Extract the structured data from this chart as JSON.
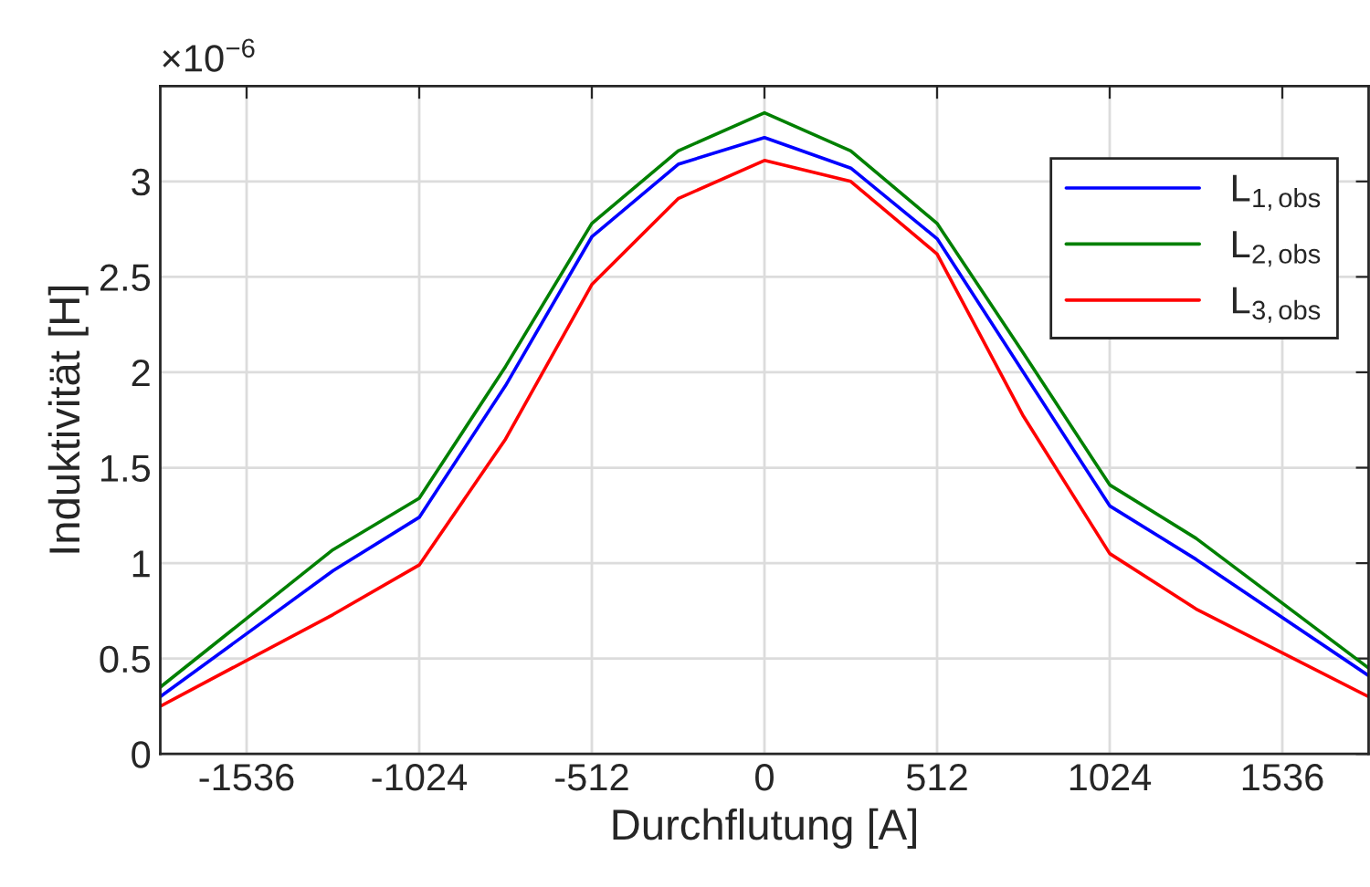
{
  "chart_data": {
    "type": "line",
    "xlabel": "Durchflutung [A]",
    "ylabel": "Induktivität [H]",
    "x": [
      -1792,
      -1280,
      -1024,
      -768,
      -512,
      -256,
      0,
      256,
      512,
      768,
      1024,
      1280,
      1792
    ],
    "series": [
      {
        "name": "L$_{1,obs}$",
        "color": "#0000ff",
        "values": [
          0.3,
          0.96,
          1.24,
          1.93,
          2.71,
          3.09,
          3.23,
          3.07,
          2.7,
          2.0,
          1.3,
          1.02,
          0.41
        ]
      },
      {
        "name": "L$_{2,obs}$",
        "color": "#008000",
        "values": [
          0.35,
          1.07,
          1.34,
          2.03,
          2.78,
          3.16,
          3.36,
          3.16,
          2.78,
          2.1,
          1.41,
          1.13,
          0.45
        ]
      },
      {
        "name": "L$_{3,obs}$",
        "color": "#ff0000",
        "values": [
          0.25,
          0.73,
          0.99,
          1.65,
          2.46,
          2.91,
          3.11,
          3.0,
          2.62,
          1.77,
          1.05,
          0.76,
          0.3
        ]
      }
    ],
    "xlim": [
      -1792,
      1792
    ],
    "xticks": [
      -1536,
      -1024,
      -512,
      0,
      512,
      1024,
      1536
    ],
    "ylim": [
      0,
      3.5
    ],
    "yticks": [
      0,
      0.5,
      1,
      1.5,
      2,
      2.5,
      3
    ],
    "annotations": [
      "×10$^{−6}$"
    ],
    "grid": true,
    "legend": "top right",
    "marker": "none",
    "line_style": "solid"
  }
}
